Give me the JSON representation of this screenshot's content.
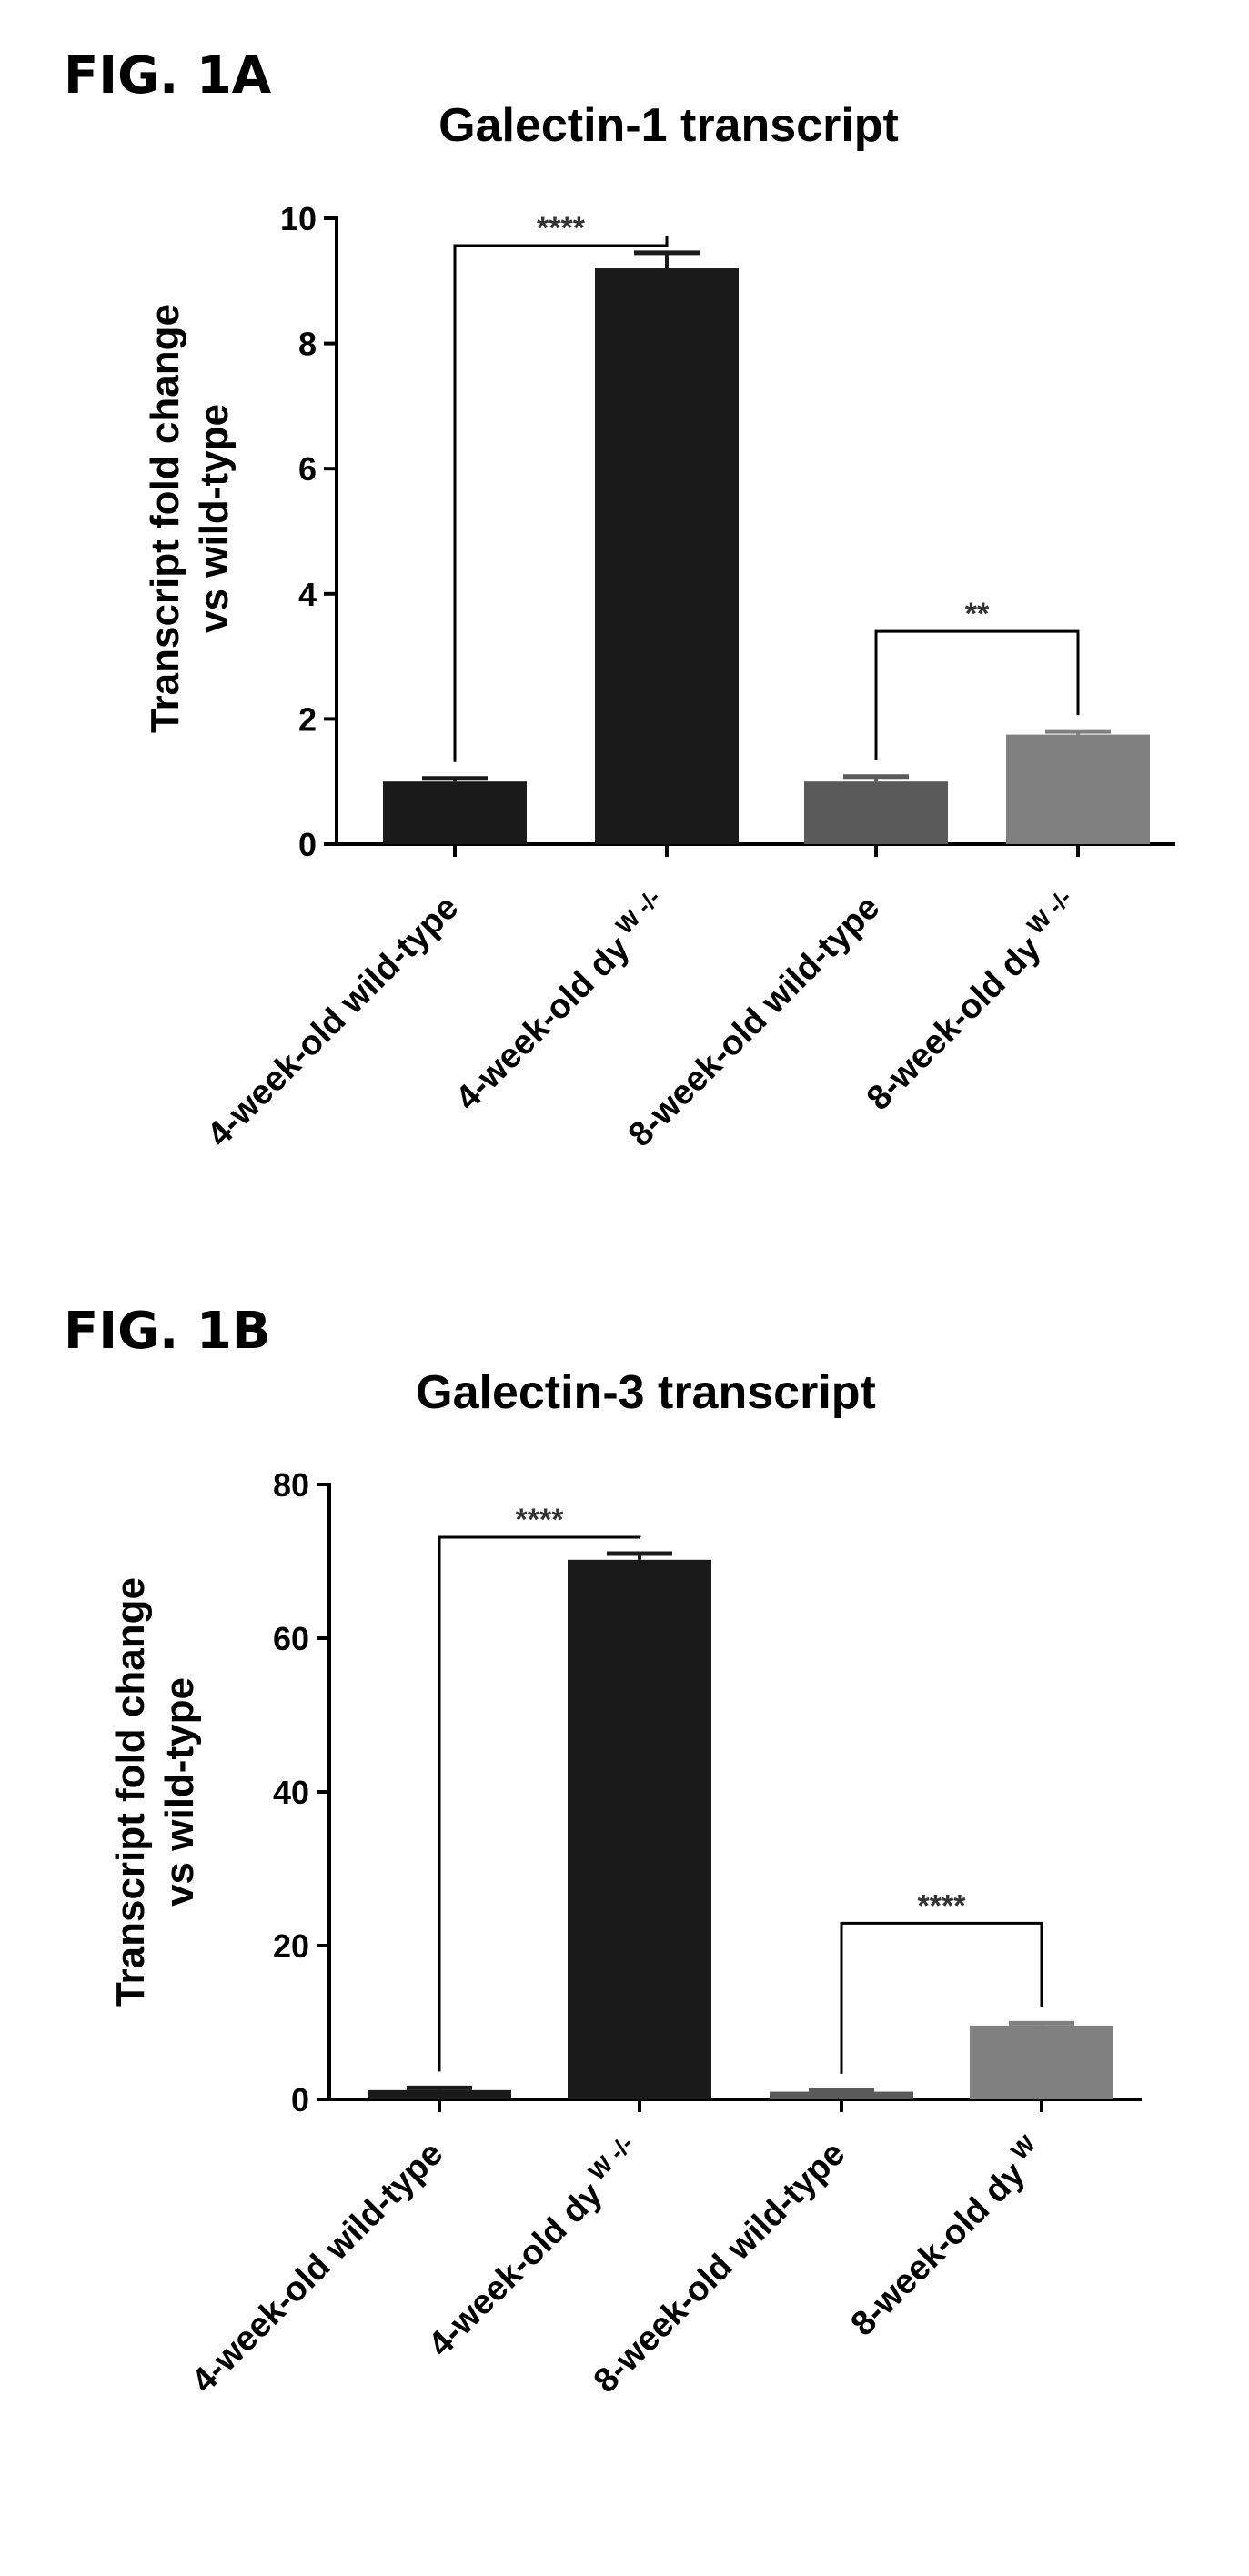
{
  "figures": [
    {
      "fig_label": "FIG. 1A",
      "chart_data": {
        "type": "bar",
        "title": "Galectin-1 transcript",
        "xlabel": "",
        "ylabel_lines": [
          "Transcript fold change",
          "vs wild-type"
        ],
        "ylim": [
          0,
          10
        ],
        "yticks": [
          0,
          2,
          4,
          6,
          8,
          10
        ],
        "categories": [
          {
            "main": "4-week-old wild-type",
            "sup": ""
          },
          {
            "main": "4-week-old dy",
            "sup": "W -/-"
          },
          {
            "main": "8-week-old wild-type",
            "sup": ""
          },
          {
            "main": "8-week-old dy",
            "sup": "W -/-"
          }
        ],
        "values": [
          1.0,
          9.2,
          1.0,
          1.75
        ],
        "errors": [
          0.05,
          0.25,
          0.08,
          0.05
        ],
        "colors": [
          "#1a1a1a",
          "#1a1a1a",
          "#5a5a5a",
          "#808080"
        ],
        "significance": [
          {
            "from": 0,
            "to": 1,
            "label": "****"
          },
          {
            "from": 2,
            "to": 3,
            "label": "**"
          }
        ]
      }
    },
    {
      "fig_label": "FIG. 1B",
      "chart_data": {
        "type": "bar",
        "title": "Galectin-3 transcript",
        "xlabel": "",
        "ylabel_lines": [
          "Transcript fold change",
          "vs wild-type"
        ],
        "ylim": [
          0,
          80
        ],
        "yticks": [
          0,
          20,
          40,
          60,
          80
        ],
        "categories": [
          {
            "main": "4-week-old wild-type",
            "sup": ""
          },
          {
            "main": "4-week-old dy",
            "sup": "W -/-"
          },
          {
            "main": "8-week-old wild-type",
            "sup": ""
          },
          {
            "main": "8-week-old dy",
            "sup": "W"
          }
        ],
        "values": [
          1.2,
          70.2,
          1.0,
          9.6
        ],
        "errors": [
          0.3,
          0.8,
          0.2,
          0.3
        ],
        "colors": [
          "#1a1a1a",
          "#1a1a1a",
          "#5a5a5a",
          "#808080"
        ],
        "significance": [
          {
            "from": 0,
            "to": 1,
            "label": "****"
          },
          {
            "from": 2,
            "to": 3,
            "label": "****"
          }
        ]
      }
    }
  ]
}
